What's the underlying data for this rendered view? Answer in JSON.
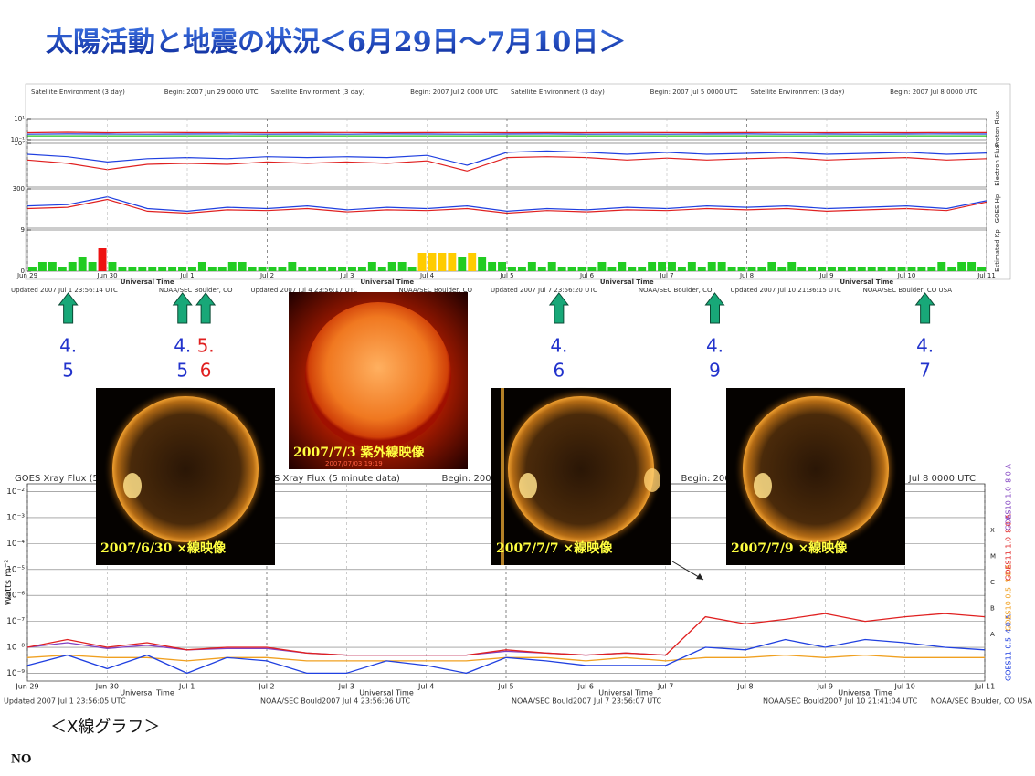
{
  "title": "太陽活動と地震の状況＜6月29日～7月10日＞",
  "top_panel": {
    "headers": [
      "Satellite Environment (3 day)",
      "Begin:  2007 Jun 29 0000 UTC",
      "Satellite Environment (3 day)",
      "Begin:  2007 Jul 2 0000 UTC",
      "Satellite Environment (3 day)",
      "Begin:  2007 Jul 5 0000 UTC",
      "Satellite Environment (3 day)",
      "Begin:  2007 Jul 8 0000 UTC"
    ],
    "x_ticks": [
      "Jun 29",
      "Jun 30",
      "Jul 1",
      "Jul 2",
      "Jul 3",
      "Jul 4",
      "Jul 5",
      "Jul 6",
      "Jul 7",
      "Jul 8",
      "Jul 9",
      "Jul 10",
      "Jul 11"
    ],
    "axis_title": "Universal Time",
    "footers": [
      "Updated 2007 Jul  1 23:56:14 UTC",
      "NOAA/SEC Boulder, CO",
      "Updated 2007 Jul  4 23:56:17 UTC",
      "NOAA/SEC Boulder, CO",
      "Updated 2007 Jul  7 23:56:20 UTC",
      "NOAA/SEC Boulder, CO",
      "Updated 2007 Jul 10 21:36:15 UTC",
      "NOAA/SEC Boulder, CO USA"
    ],
    "x": [
      0,
      0.5,
      1,
      1.5,
      2,
      2.5,
      3,
      3.5,
      4,
      4.5,
      5,
      5.5,
      6,
      6.5,
      7,
      7.5,
      8,
      8.5,
      9,
      9.5,
      10,
      10.5,
      11,
      11.5,
      12
    ],
    "panels": [
      {
        "label": "Proton Flux",
        "log": true,
        "ylim": [
          0.1,
          10
        ],
        "yticks": [
          {
            "value": 10,
            "label": "10¹"
          },
          {
            "value": 0.1,
            "label": "10⁻¹"
          }
        ],
        "series": [
          {
            "color": "#e02020",
            "values": [
              0.45,
              0.5,
              0.45,
              0.48,
              0.46,
              0.47,
              0.45,
              0.46,
              0.47,
              0.45,
              0.46,
              0.47,
              0.45,
              0.46,
              0.45,
              0.47,
              0.46,
              0.45,
              0.46,
              0.47,
              0.45,
              0.46,
              0.45,
              0.47,
              0.46
            ]
          },
          {
            "color": "#2040e0",
            "values": [
              0.32,
              0.34,
              0.33,
              0.32,
              0.33,
              0.34,
              0.32,
              0.33,
              0.32,
              0.34,
              0.33,
              0.32,
              0.33,
              0.34,
              0.32,
              0.33,
              0.32,
              0.33,
              0.34,
              0.32,
              0.33,
              0.32,
              0.33,
              0.34,
              0.33
            ]
          },
          {
            "color": "#20c020",
            "values": [
              0.22,
              0.22,
              0.22,
              0.22,
              0.22,
              0.22,
              0.22,
              0.22,
              0.22,
              0.22,
              0.22,
              0.22,
              0.22,
              0.22,
              0.22,
              0.22,
              0.22,
              0.22,
              0.22,
              0.22,
              0.22,
              0.22,
              0.22,
              0.22,
              0.22
            ]
          }
        ]
      },
      {
        "label": "Electron Flux",
        "log": true,
        "ylim": [
          1000,
          10000000
        ],
        "yticks": [
          {
            "value": 10000000,
            "label": "10⁷"
          }
        ],
        "series": [
          {
            "color": "#2040e0",
            "values": [
              1000000,
              600000,
              200000,
              400000,
              500000,
              400000,
              600000,
              500000,
              600000,
              500000,
              800000,
              100000,
              1500000,
              2000000,
              1500000,
              1000000,
              1500000,
              1000000,
              1200000,
              1500000,
              1000000,
              1200000,
              1500000,
              1000000,
              1300000
            ]
          },
          {
            "color": "#e02020",
            "values": [
              300000,
              150000,
              40000,
              120000,
              150000,
              120000,
              200000,
              150000,
              200000,
              150000,
              250000,
              30000,
              500000,
              600000,
              500000,
              300000,
              450000,
              300000,
              400000,
              500000,
              300000,
              400000,
              500000,
              300000,
              400000
            ]
          }
        ]
      },
      {
        "label": "GOES Hp",
        "log": false,
        "ylim": [
          0,
          300
        ],
        "yticks": [
          300
        ],
        "series": [
          {
            "color": "#2040e0",
            "values": [
              170,
              180,
              240,
              150,
              130,
              160,
              150,
              170,
              140,
              160,
              150,
              170,
              130,
              150,
              140,
              160,
              150,
              170,
              160,
              170,
              150,
              160,
              170,
              150,
              210
            ]
          },
          {
            "color": "#e02020",
            "values": [
              150,
              160,
              220,
              130,
              115,
              140,
              135,
              150,
              125,
              140,
              135,
              150,
              115,
              135,
              125,
              140,
              135,
              150,
              140,
              150,
              130,
              140,
              150,
              135,
              200
            ]
          }
        ]
      }
    ],
    "kp": {
      "label": "Estimated Kp",
      "ylim": [
        0,
        9
      ],
      "yticks": [
        0,
        9
      ],
      "color_scale": [
        {
          "from": 0,
          "color": "#22cc22"
        },
        {
          "from": 4,
          "color": "#ffcc00"
        },
        {
          "from": 5,
          "color": "#ee1111"
        }
      ],
      "values": [
        1,
        2,
        2,
        1,
        2,
        3,
        2,
        5,
        2,
        1,
        1,
        1,
        1,
        1,
        1,
        1,
        1,
        2,
        1,
        1,
        2,
        2,
        1,
        1,
        1,
        1,
        2,
        1,
        1,
        1,
        1,
        1,
        1,
        1,
        2,
        1,
        2,
        2,
        1,
        4,
        4,
        4,
        4,
        3,
        4,
        3,
        2,
        2,
        1,
        1,
        2,
        1,
        2,
        1,
        1,
        1,
        1,
        2,
        1,
        2,
        1,
        1,
        2,
        2,
        2,
        1,
        2,
        1,
        2,
        2,
        1,
        1,
        1,
        1,
        2,
        1,
        2,
        1,
        1,
        1,
        1,
        1,
        1,
        1,
        1,
        1,
        1,
        1,
        1,
        1,
        1,
        2,
        1,
        2,
        2,
        1
      ]
    }
  },
  "earthquakes": [
    {
      "day": 0.51,
      "lines": [
        "4.",
        "5"
      ],
      "color": "#2233cc"
    },
    {
      "day": 1.94,
      "lines": [
        "4.",
        "5"
      ],
      "color": "#2233cc"
    },
    {
      "day": 2.23,
      "lines": [
        "5.",
        "6"
      ],
      "color": "#e02020"
    },
    {
      "day": 6.65,
      "lines": [
        "4.",
        "6"
      ],
      "color": "#2233cc"
    },
    {
      "day": 8.6,
      "lines": [
        "4.",
        "9"
      ],
      "color": "#2233cc"
    },
    {
      "day": 11.23,
      "lines": [
        "4.",
        "7"
      ],
      "color": "#2233cc"
    }
  ],
  "images": [
    {
      "caption": "2007/6/30 ×線映像"
    },
    {
      "caption": "2007/7/3  紫外線映像",
      "stamp": "2007/07/03  19:19"
    },
    {
      "caption": "2007/7/7 ×線映像"
    },
    {
      "caption": "2007/7/9 ×線映像"
    }
  ],
  "xray": {
    "headers": [
      "GOES Xray Flux (5 minute data)",
      "Begin:  2007",
      "GOES Xray Flux (5 minute data)",
      "Begin:  2007",
      "GOES Xray Flux (5 minute data)",
      "Begin:  2007",
      "GOES Xray Flux (5 minute data)",
      "Begin:  2007 Jul 8 0000 UTC"
    ],
    "y_label": "Watts m⁻²",
    "log": true,
    "ylim": [
      5e-10,
      0.02
    ],
    "yticks": [
      {
        "value": 1e-09,
        "label": "10⁻⁹"
      },
      {
        "value": 1e-08,
        "label": "10⁻⁸"
      },
      {
        "value": 1e-07,
        "label": "10⁻⁷"
      },
      {
        "value": 1e-06,
        "label": "10⁻⁶"
      },
      {
        "value": 1e-05,
        "label": "10⁻⁵"
      },
      {
        "value": 0.0001,
        "label": "10⁻⁴"
      },
      {
        "value": 0.001,
        "label": "10⁻³"
      },
      {
        "value": 0.01,
        "label": "10⁻²"
      }
    ],
    "class_labels": [
      "A",
      "B",
      "C",
      "M",
      "X"
    ],
    "x_ticks": [
      "Jun 29",
      "Jun 30",
      "Jul 1",
      "Jul 2",
      "Jul 3",
      "Jul 4",
      "Jul 5",
      "Jul 6",
      "Jul 7",
      "Jul 8",
      "Jul 9",
      "Jul 10",
      "Jul 11"
    ],
    "axis_title": "Universal Time",
    "footers": [
      "Updated 2007 Jul  1 23:56:05 UTC",
      "NOAA/SEC Bould2007 Jul  4 23:56:06 UTC",
      "NOAA/SEC Bould2007 Jul  7 23:56:07 UTC",
      "NOAA/SEC Bould2007 Jul 10 21:41:04 UTC",
      "NOAA/SEC Boulder, CO USA"
    ],
    "x": [
      0,
      0.5,
      1,
      1.5,
      2,
      2.5,
      3,
      3.5,
      4,
      4.5,
      5,
      5.5,
      6,
      6.5,
      7,
      7.5,
      8,
      8.5,
      9,
      9.5,
      10,
      10.5,
      11,
      11.5,
      12
    ],
    "series": [
      {
        "name": "GOES10 1.0–8.0 A",
        "color": "#8040c0",
        "values": [
          1e-08,
          1.5e-08,
          9e-09,
          1.2e-08,
          8e-09,
          9e-09,
          9e-09,
          6e-09,
          5e-09,
          5e-09,
          5e-09,
          5e-09,
          7e-09,
          6e-09,
          5e-09,
          6e-09,
          5e-09,
          null,
          null,
          null,
          null,
          null,
          null,
          null,
          null
        ]
      },
      {
        "name": "GOES11 1.0–8.0 A",
        "color": "#e02020",
        "values": [
          1e-08,
          2e-08,
          1e-08,
          1.5e-08,
          8e-09,
          1e-08,
          1e-08,
          6e-09,
          5e-09,
          5e-09,
          5e-09,
          5e-09,
          8e-09,
          6e-09,
          5e-09,
          6e-09,
          5e-09,
          1.5e-07,
          8e-08,
          1.2e-07,
          2e-07,
          1e-07,
          1.5e-07,
          2e-07,
          1.5e-07
        ]
      },
      {
        "name": "GOES10 0.5–4.0 A",
        "color": "#f0a020",
        "values": [
          4e-09,
          5e-09,
          4e-09,
          4e-09,
          3e-09,
          4e-09,
          4e-09,
          3e-09,
          3e-09,
          3e-09,
          3e-09,
          3e-09,
          4e-09,
          4e-09,
          3e-09,
          4e-09,
          3e-09,
          4e-09,
          4e-09,
          5e-09,
          4e-09,
          5e-09,
          4e-09,
          4e-09,
          4e-09
        ]
      },
      {
        "name": "GOES11 0.5–4.0 A",
        "color": "#2040e0",
        "values": [
          2e-09,
          5e-09,
          1.5e-09,
          5e-09,
          1e-09,
          4e-09,
          3e-09,
          1e-09,
          1e-09,
          3e-09,
          2e-09,
          1e-09,
          4e-09,
          3e-09,
          2e-09,
          2e-09,
          2e-09,
          1e-08,
          8e-09,
          2e-08,
          1e-08,
          2e-08,
          1.5e-08,
          1e-08,
          8e-09
        ]
      }
    ]
  },
  "xray_caption": "＜X線グラフ＞",
  "note": "NO"
}
